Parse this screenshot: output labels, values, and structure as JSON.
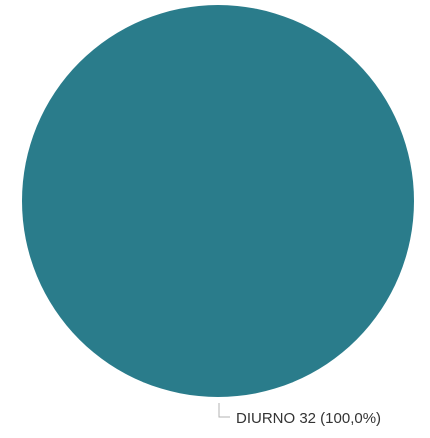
{
  "chart_data": {
    "type": "pie",
    "slices": [
      {
        "category": "DIURNO",
        "value": 32,
        "percent_label": "100,0%",
        "color": "#2a7c8b",
        "label": "DIURNO 32 (100,0%)"
      }
    ],
    "legend": "none",
    "title": ""
  }
}
